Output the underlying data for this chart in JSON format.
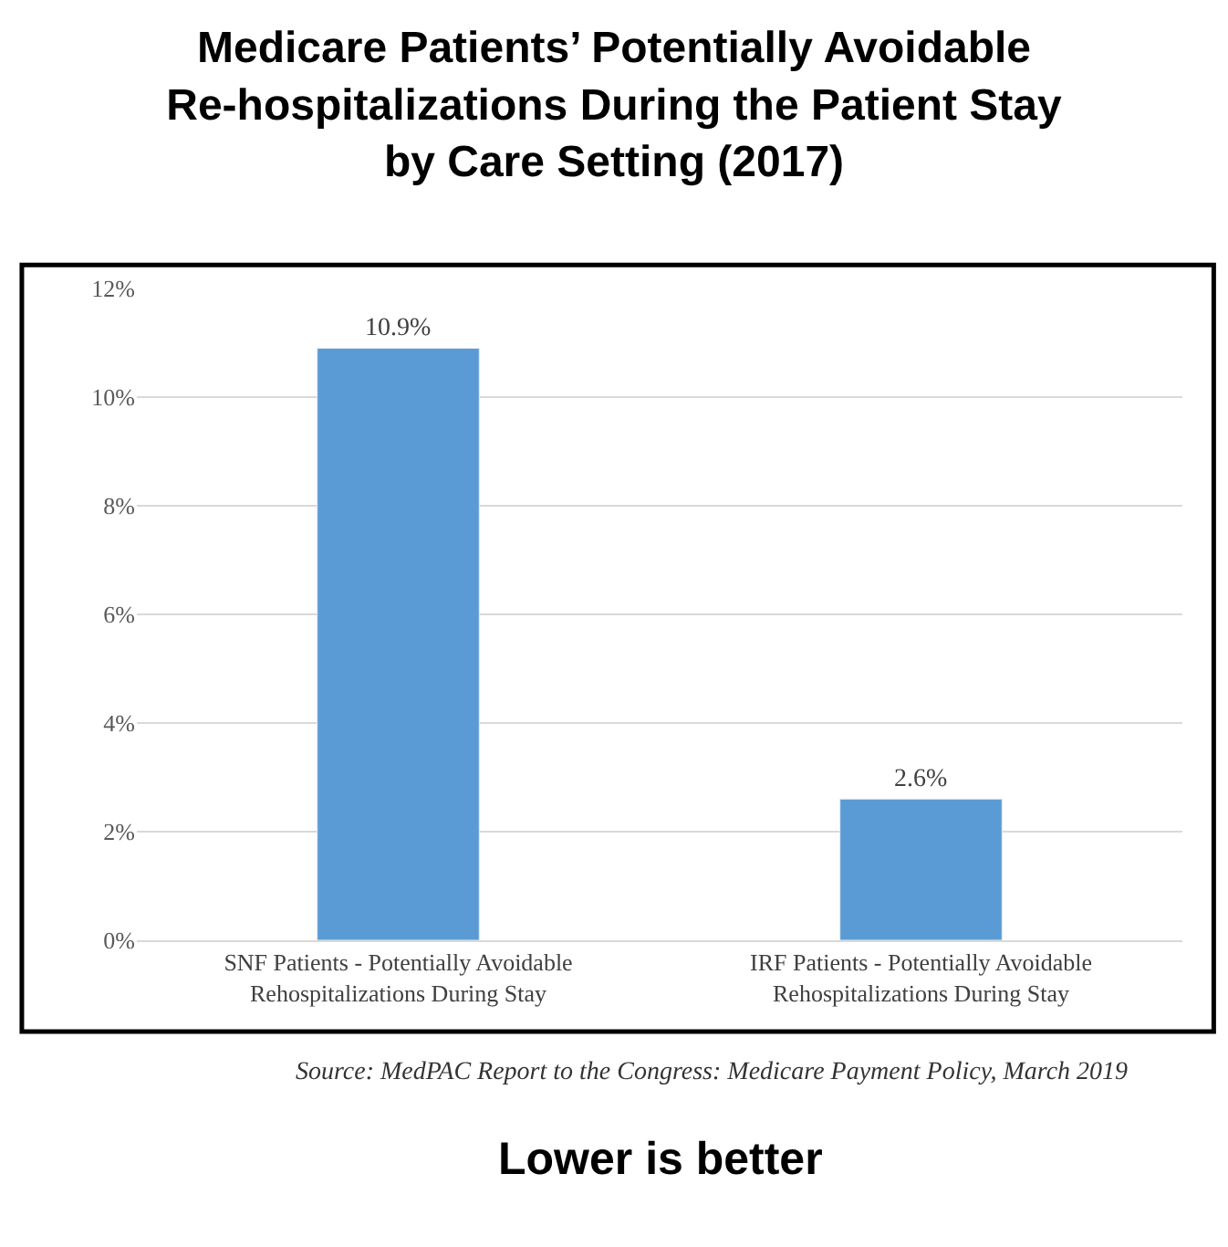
{
  "chart_data": {
    "type": "bar",
    "title": "Medicare Patients’ Potentially Avoidable\nRe-hospitalizations During the Patient Stay\nby Care Setting (2017)",
    "categories": [
      "SNF Patients - Potentially Avoidable Rehospitalizations During Stay",
      "IRF Patients - Potentially Avoidable Rehospitalizations During Stay"
    ],
    "values": [
      10.9,
      2.6
    ],
    "color": "#5b9bd5",
    "value_labels": [
      "10.9%",
      "2.6%"
    ],
    "ylim": [
      0,
      12
    ],
    "yticks": [
      {
        "value": 0,
        "label": "0%"
      },
      {
        "value": 2,
        "label": "2%"
      },
      {
        "value": 4,
        "label": "4%"
      },
      {
        "value": 6,
        "label": "6%"
      },
      {
        "value": 8,
        "label": "8%"
      },
      {
        "value": 10,
        "label": "10%"
      },
      {
        "value": 12,
        "label": "12%"
      }
    ],
    "grid": "y",
    "legend": false,
    "annotations": [
      "Source: MedPAC Report to the Congress: Medicare Payment Policy, March 2019",
      "Lower is better"
    ]
  }
}
